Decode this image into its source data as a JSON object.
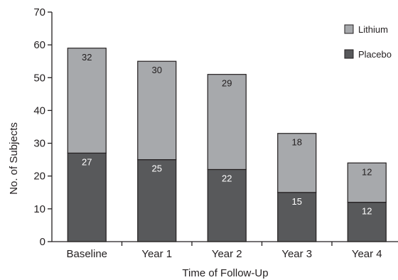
{
  "chart_data": {
    "type": "bar",
    "stacked": true,
    "xlabel": "Time of Follow-Up",
    "ylabel": "No. of Subjects",
    "ylim": [
      0,
      70
    ],
    "yticks": [
      "0",
      "10",
      "20",
      "30",
      "40",
      "50",
      "60",
      "70"
    ],
    "categories": [
      "Baseline",
      "Year 1",
      "Year 2",
      "Year 3",
      "Year 4"
    ],
    "series": [
      {
        "name": "Placebo",
        "values": [
          27,
          25,
          22,
          15,
          12
        ],
        "color": "#58595b",
        "label_color": "#ffffff"
      },
      {
        "name": "Lithium",
        "values": [
          32,
          30,
          29,
          18,
          12
        ],
        "color": "#a7a9ac",
        "label_color": "#231f20"
      }
    ],
    "legend": {
      "placement": "top-right",
      "order": [
        "Lithium",
        "Placebo"
      ]
    },
    "grid": false
  }
}
